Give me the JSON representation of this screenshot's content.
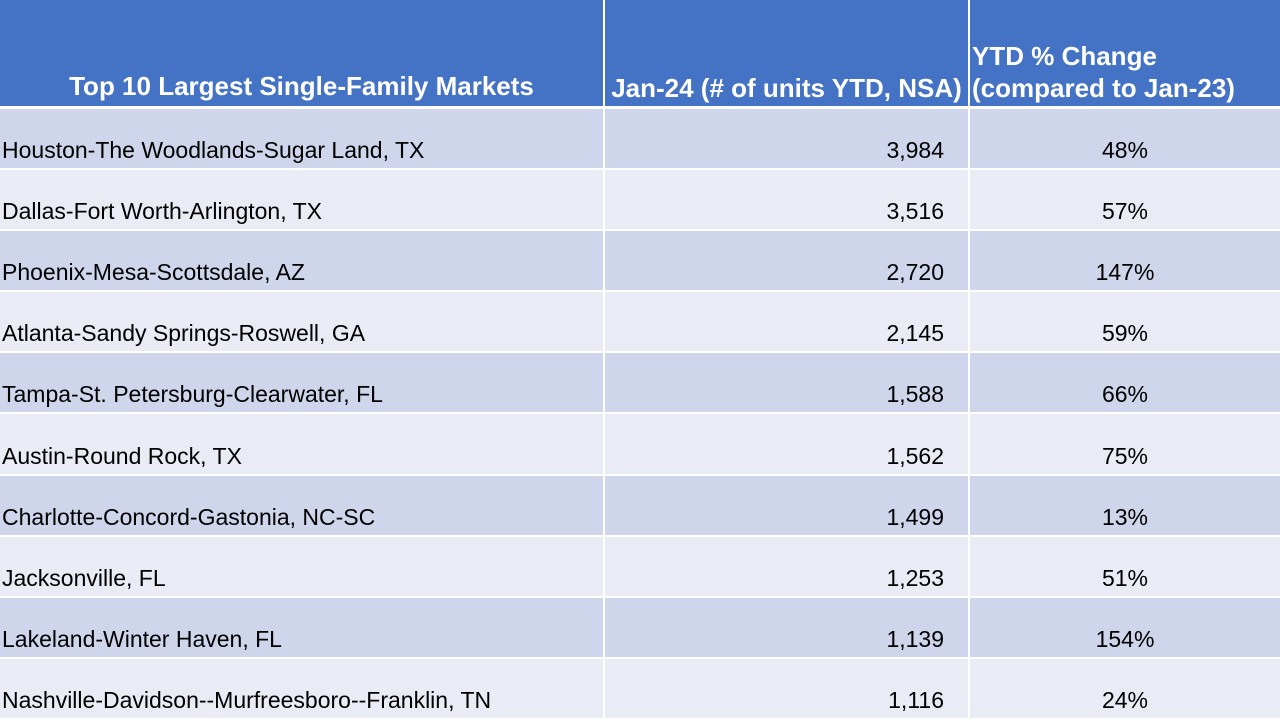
{
  "table": {
    "headers": {
      "market": "Top 10 Largest Single-Family Markets",
      "units": "Jan-24 (# of units YTD, NSA)",
      "change": "YTD % Change (compared to Jan-23)"
    },
    "rows": [
      {
        "market": "Houston-The Woodlands-Sugar Land, TX",
        "units": "3,984",
        "change": "48%"
      },
      {
        "market": "Dallas-Fort Worth-Arlington, TX",
        "units": "3,516",
        "change": "57%"
      },
      {
        "market": "Phoenix-Mesa-Scottsdale, AZ",
        "units": "2,720",
        "change": "147%"
      },
      {
        "market": "Atlanta-Sandy Springs-Roswell, GA",
        "units": "2,145",
        "change": "59%"
      },
      {
        "market": "Tampa-St. Petersburg-Clearwater, FL",
        "units": "1,588",
        "change": "66%"
      },
      {
        "market": "Austin-Round Rock, TX",
        "units": "1,562",
        "change": "75%"
      },
      {
        "market": "Charlotte-Concord-Gastonia, NC-SC",
        "units": "1,499",
        "change": "13%"
      },
      {
        "market": "Jacksonville, FL",
        "units": "1,253",
        "change": "51%"
      },
      {
        "market": "Lakeland-Winter Haven, FL",
        "units": "1,139",
        "change": "154%"
      },
      {
        "market": "Nashville-Davidson--Murfreesboro--Franklin, TN",
        "units": "1,116",
        "change": "24%"
      }
    ]
  },
  "colors": {
    "header_bg": "#4472c4",
    "row_band_dark": "#cfd5ea",
    "row_band_light": "#e9ebf5"
  }
}
